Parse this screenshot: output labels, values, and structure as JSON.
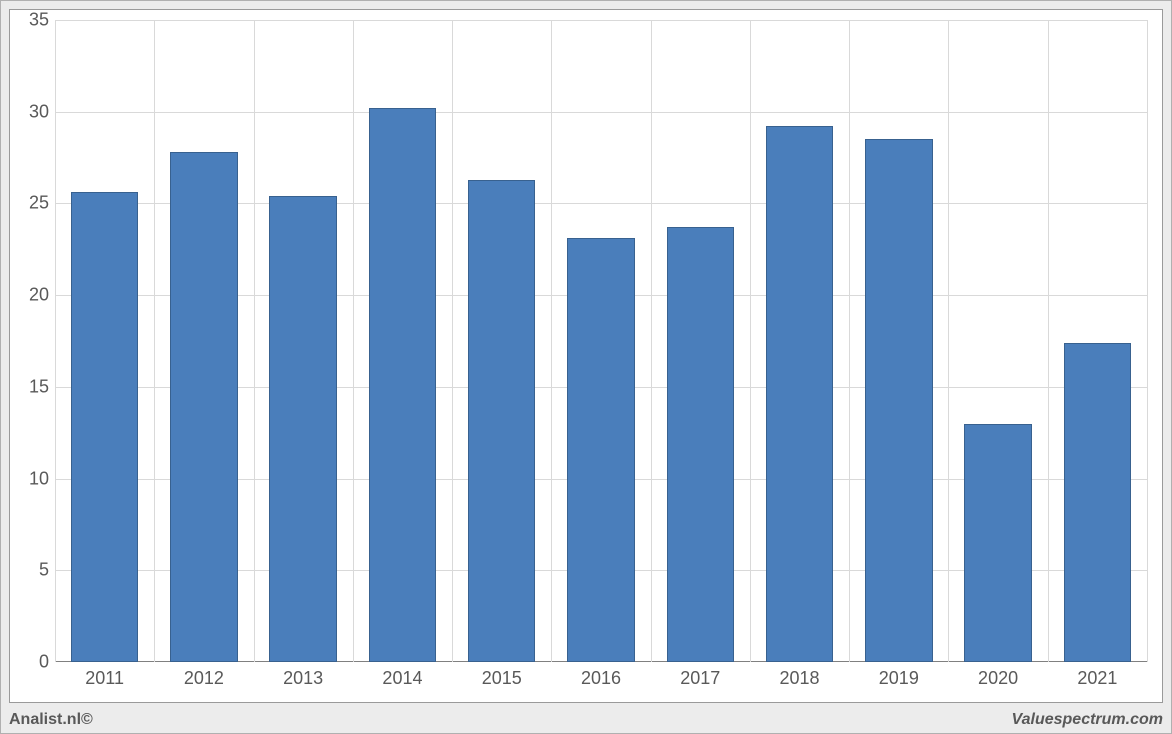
{
  "chart": {
    "type": "bar",
    "categories": [
      "2011",
      "2012",
      "2013",
      "2014",
      "2015",
      "2016",
      "2017",
      "2018",
      "2019",
      "2020",
      "2021"
    ],
    "values": [
      25.6,
      27.8,
      25.4,
      30.2,
      26.3,
      23.1,
      23.7,
      29.2,
      28.5,
      13.0,
      17.4
    ],
    "bar_color": "#4a7ebb",
    "bar_border_color": "#38618f",
    "background_color": "#ffffff",
    "frame_background": "#ececec",
    "grid_color": "#d9d9d9",
    "axis_color": "#808080",
    "tick_font_color": "#595959",
    "tick_fontsize": 18,
    "ylim": [
      0,
      35
    ],
    "ytick_step": 5,
    "yticks": [
      "0",
      "5",
      "10",
      "15",
      "20",
      "25",
      "30",
      "35"
    ],
    "bar_width_ratio": 0.68
  },
  "footer": {
    "left": "Analist.nl©",
    "right": "Valuespectrum.com"
  }
}
